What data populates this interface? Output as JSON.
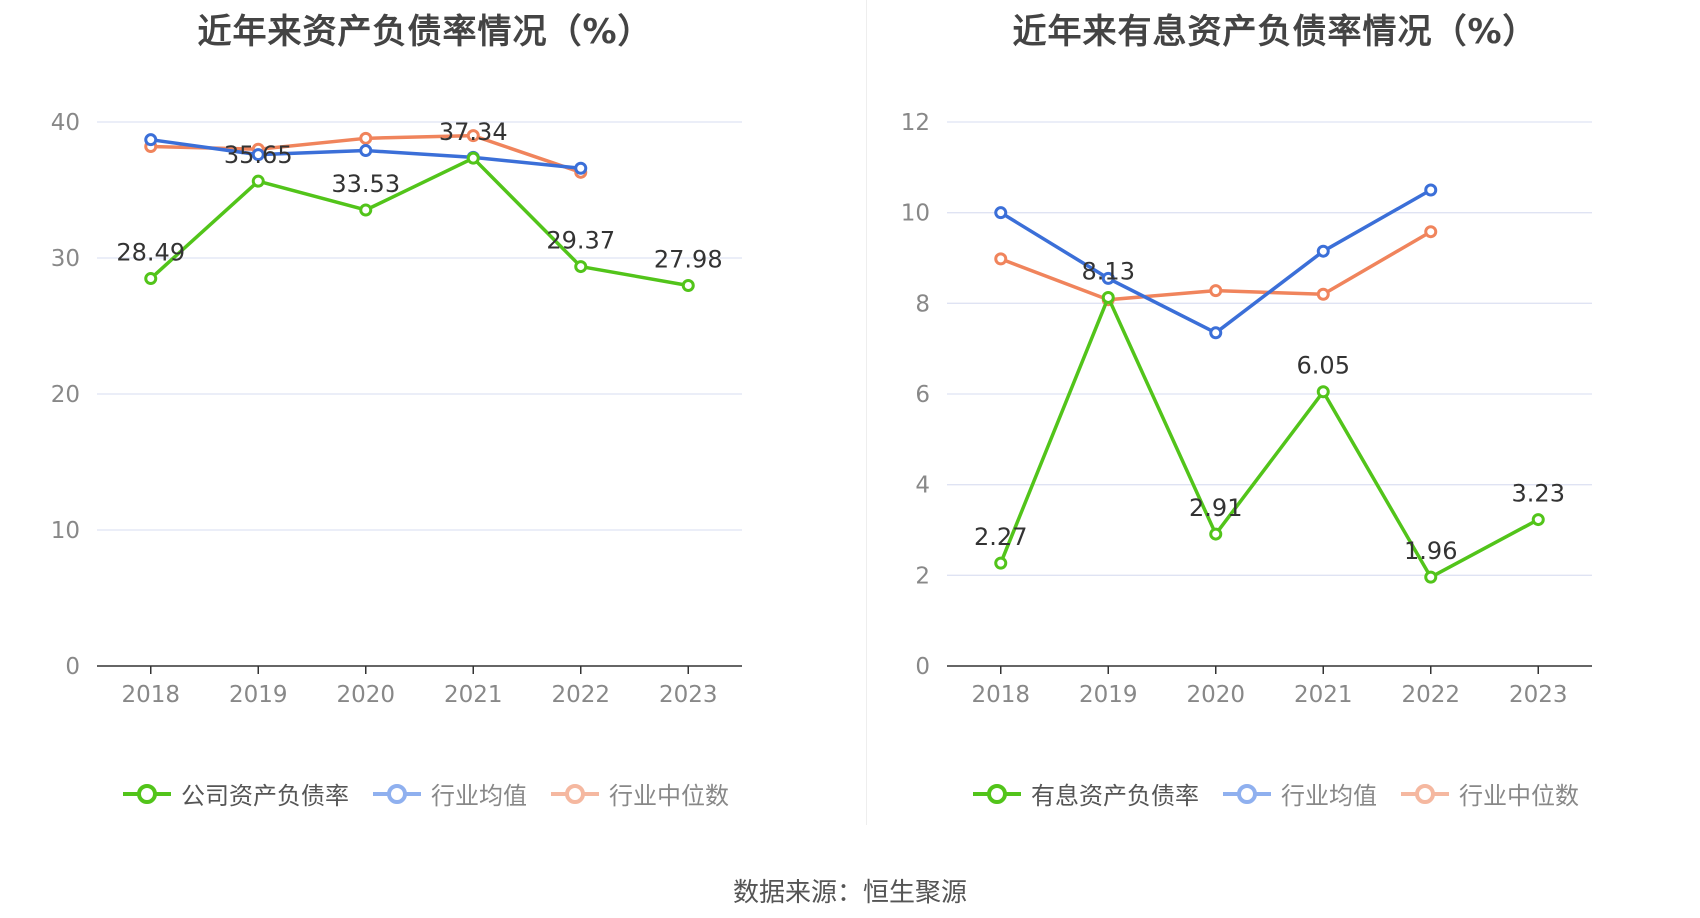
{
  "charts": [
    {
      "title": "近年来资产负债率情况（%）",
      "legend": [
        "公司资产负债率",
        "行业均值",
        "行业中位数"
      ]
    },
    {
      "title": "近年来有息资产负债率情况（%）",
      "legend": [
        "有息资产负债率",
        "行业均值",
        "行业中位数"
      ]
    }
  ],
  "source": "数据来源：恒生聚源",
  "colors": {
    "company": "#52c41a",
    "avg": "#3b6fd8",
    "median": "#f0845c",
    "grid": "#dfe3f3",
    "axis": "#333333",
    "tick": "#888888",
    "label": "#333333"
  },
  "chart_data": [
    {
      "type": "line",
      "title": "近年来资产负债率情况（%）",
      "categories": [
        "2018",
        "2019",
        "2020",
        "2021",
        "2022",
        "2023"
      ],
      "ylim": [
        0,
        40
      ],
      "yticks": [
        0,
        10,
        20,
        30,
        40
      ],
      "grid": true,
      "legend_position": "bottom",
      "series": [
        {
          "name": "公司资产负债率",
          "values": [
            28.49,
            35.65,
            33.53,
            37.34,
            29.37,
            27.98
          ],
          "labels": [
            "28.49",
            "35.65",
            "33.53",
            "37.34",
            "29.37",
            "27.98"
          ]
        },
        {
          "name": "行业均值",
          "values": [
            38.7,
            37.6,
            37.9,
            37.4,
            36.6,
            null
          ]
        },
        {
          "name": "行业中位数",
          "values": [
            38.2,
            38.0,
            38.8,
            39.0,
            36.3,
            null
          ]
        }
      ]
    },
    {
      "type": "line",
      "title": "近年来有息资产负债率情况（%）",
      "categories": [
        "2018",
        "2019",
        "2020",
        "2021",
        "2022",
        "2023"
      ],
      "ylim": [
        0,
        12
      ],
      "yticks": [
        0,
        2,
        4,
        6,
        8,
        10,
        12
      ],
      "grid": true,
      "legend_position": "bottom",
      "series": [
        {
          "name": "有息资产负债率",
          "values": [
            2.27,
            8.13,
            2.91,
            6.05,
            1.96,
            3.23
          ],
          "labels": [
            "2.27",
            "8.13",
            "2.91",
            "6.05",
            "1.96",
            "3.23"
          ]
        },
        {
          "name": "行业均值",
          "values": [
            10.0,
            8.55,
            7.35,
            9.15,
            10.5,
            null
          ]
        },
        {
          "name": "行业中位数",
          "values": [
            8.98,
            8.08,
            8.28,
            8.2,
            9.58,
            null
          ]
        }
      ]
    }
  ]
}
